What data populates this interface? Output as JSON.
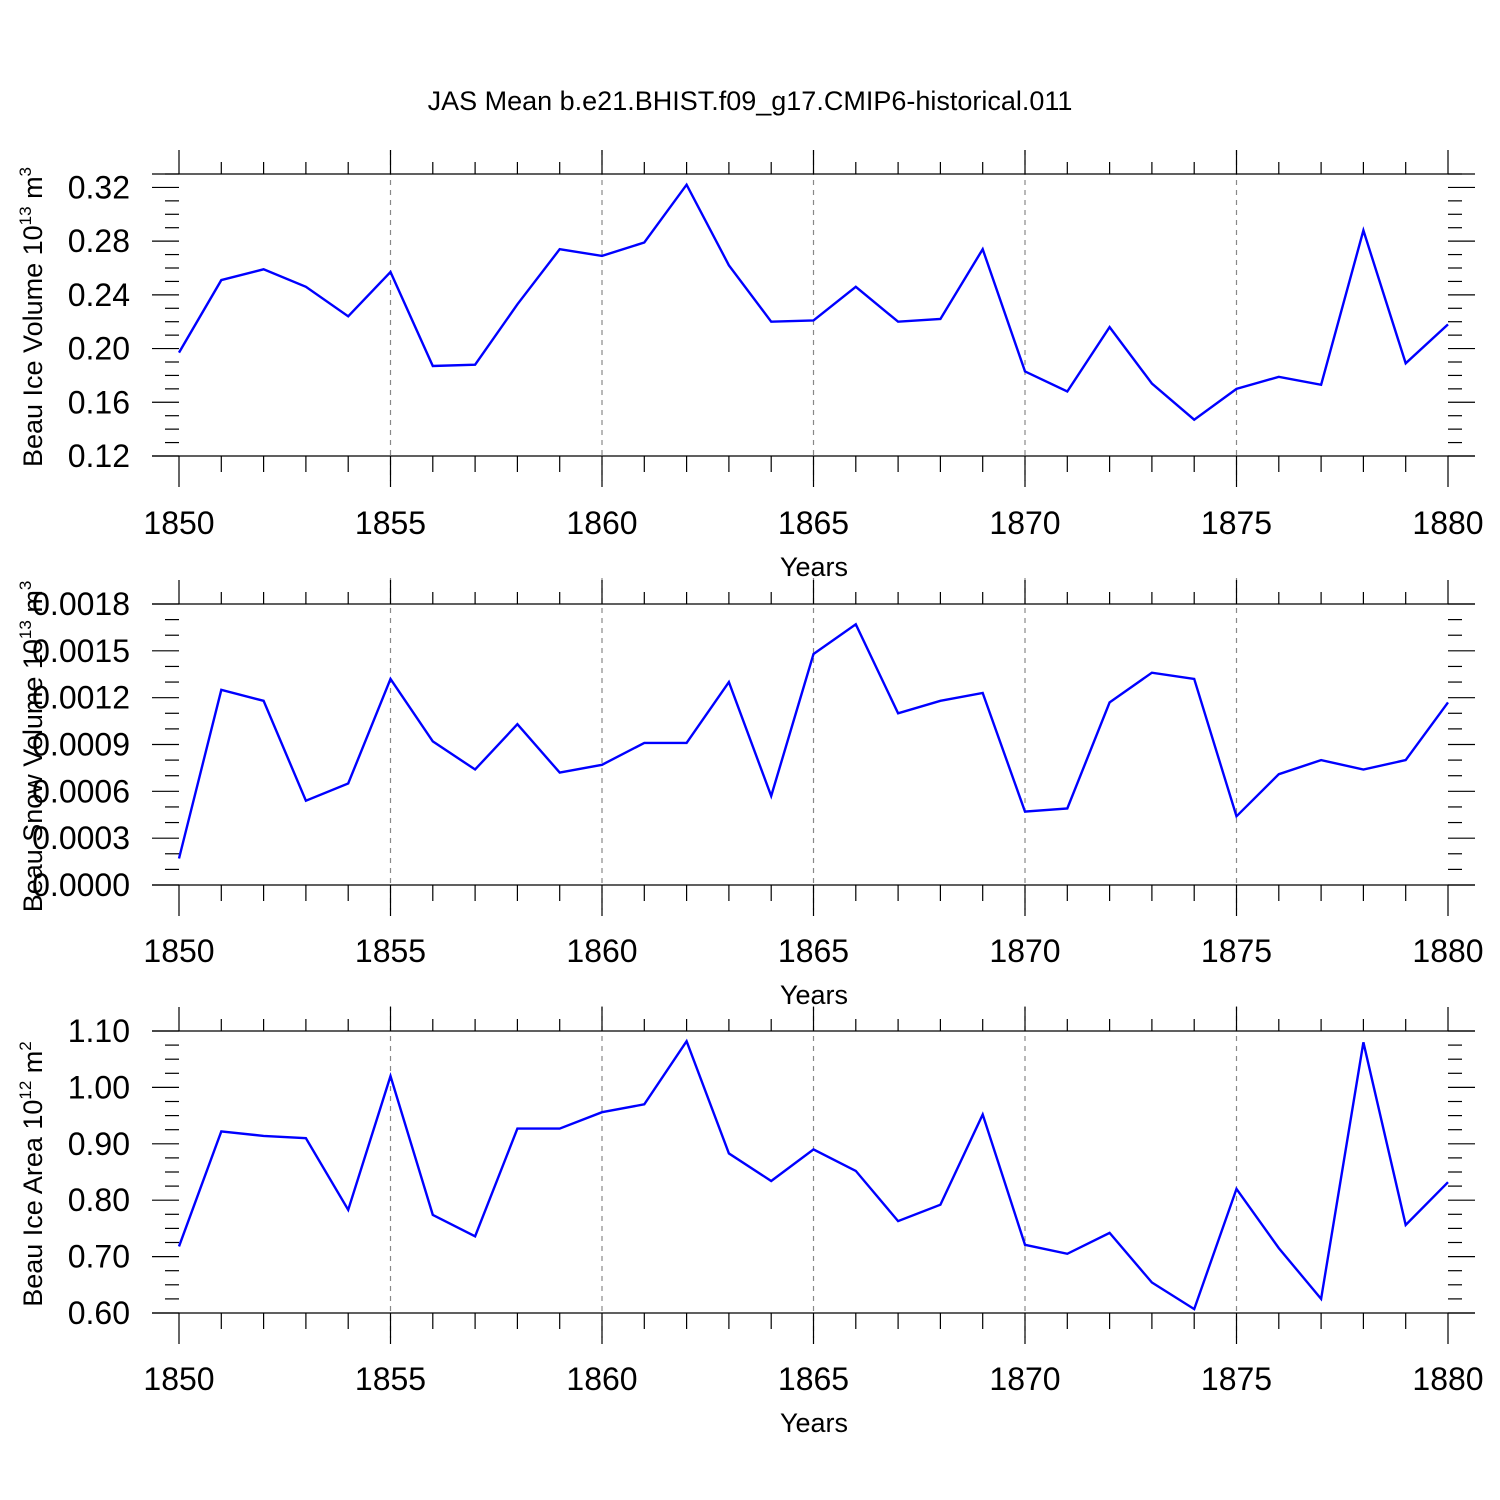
{
  "chart_data": [
    {
      "type": "line",
      "title": "JAS Mean b.e21.BHIST.f09_g17.CMIP6-historical.011",
      "xlabel": "Years",
      "ylabel": {
        "base": "Beau Ice Volume 10",
        "exp": "13",
        "unit": " m",
        "unit_exp": "3"
      },
      "xlim": [
        1850,
        1880
      ],
      "ylim": [
        0.12,
        0.33
      ],
      "x_ticks": [
        "1850",
        "1855",
        "1860",
        "1865",
        "1870",
        "1875",
        "1880"
      ],
      "y_ticks": [
        "0.12",
        "0.16",
        "0.20",
        "0.24",
        "0.28",
        "0.32"
      ],
      "x_start": 1850,
      "values": [
        0.197,
        0.251,
        0.259,
        0.246,
        0.224,
        0.257,
        0.187,
        0.188,
        0.233,
        0.274,
        0.269,
        0.279,
        0.322,
        0.262,
        0.22,
        0.221,
        0.246,
        0.22,
        0.222,
        0.274,
        0.183,
        0.168,
        0.216,
        0.174,
        0.147,
        0.17,
        0.179,
        0.173,
        0.288,
        0.189,
        0.218
      ],
      "line_color": "#0000ff"
    },
    {
      "type": "line",
      "xlabel": "Years",
      "ylabel": {
        "base": "Beau Snow Volume 10",
        "exp": "13",
        "unit": " m",
        "unit_exp": "3"
      },
      "xlim": [
        1850,
        1880
      ],
      "ylim": [
        0.0,
        0.0018
      ],
      "x_ticks": [
        "1850",
        "1855",
        "1860",
        "1865",
        "1870",
        "1875",
        "1880"
      ],
      "y_ticks": [
        "0.0000",
        "0.0003",
        "0.0006",
        "0.0009",
        "0.0012",
        "0.0015",
        "0.0018"
      ],
      "x_start": 1850,
      "values": [
        0.00017,
        0.00125,
        0.00118,
        0.00054,
        0.00065,
        0.00132,
        0.00092,
        0.00074,
        0.00103,
        0.00072,
        0.00077,
        0.00091,
        0.00091,
        0.0013,
        0.00057,
        0.00148,
        0.00167,
        0.0011,
        0.00118,
        0.00123,
        0.00047,
        0.00049,
        0.00117,
        0.00136,
        0.00132,
        0.00044,
        0.00071,
        0.0008,
        0.00074,
        0.0008,
        0.00117
      ],
      "line_color": "#0000ff"
    },
    {
      "type": "line",
      "xlabel": "Years",
      "ylabel": {
        "base": "Beau Ice Area 10",
        "exp": "12",
        "unit": " m",
        "unit_exp": "2"
      },
      "xlim": [
        1850,
        1880
      ],
      "ylim": [
        0.6,
        1.1
      ],
      "x_ticks": [
        "1850",
        "1855",
        "1860",
        "1865",
        "1870",
        "1875",
        "1880"
      ],
      "y_ticks": [
        "0.60",
        "0.70",
        "0.80",
        "0.90",
        "1.00",
        "1.10"
      ],
      "x_start": 1850,
      "values": [
        0.718,
        0.922,
        0.914,
        0.91,
        0.783,
        1.02,
        0.774,
        0.736,
        0.927,
        0.927,
        0.956,
        0.97,
        1.082,
        0.883,
        0.834,
        0.89,
        0.852,
        0.763,
        0.792,
        0.952,
        0.721,
        0.705,
        0.742,
        0.654,
        0.607,
        0.82,
        0.715,
        0.625,
        1.08,
        0.756,
        0.832
      ],
      "line_color": "#0000ff"
    }
  ]
}
